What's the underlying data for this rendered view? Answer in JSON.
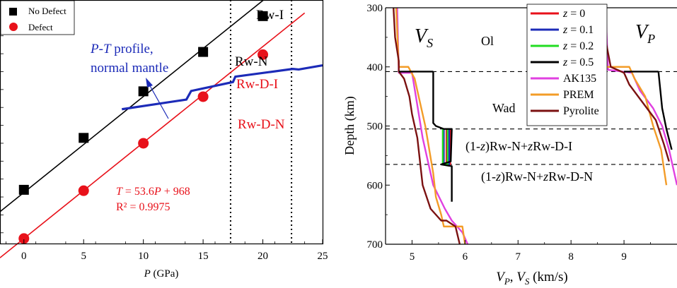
{
  "chart_data": [
    {
      "type": "scatter",
      "xlabel": "P (GPa)",
      "xlabel_parts": {
        "var": "P",
        "unit": " (GPa)"
      },
      "ylabel": "",
      "xlim": [
        -2,
        25
      ],
      "ylim": [
        940,
        2300
      ],
      "xticks": [
        "0",
        "5",
        "10",
        "15",
        "20",
        "25"
      ],
      "grid": false,
      "legend_position": "top-left",
      "series": [
        {
          "name": "No Defect",
          "marker": "square",
          "color": "#000000",
          "x": [
            0,
            5,
            10,
            15,
            20
          ],
          "y": [
            1240,
            1530,
            1790,
            2010,
            2210
          ],
          "fit": {
            "slope": 53.6,
            "intercept": 1225,
            "x_range": [
              -2,
              23.5
            ]
          }
        },
        {
          "name": "Defect",
          "marker": "circle",
          "color": "#e8111a",
          "x": [
            0,
            5,
            10,
            15,
            20
          ],
          "y": [
            968,
            1235,
            1500,
            1760,
            1995
          ],
          "fit": {
            "slope": 53.6,
            "intercept": 968,
            "x_range": [
              -2,
              23.5
            ]
          }
        },
        {
          "name": "P-T profile, normal mantle",
          "marker": "none",
          "color": "#1c2bb8",
          "x": [
            8.2,
            13.6,
            14,
            17.5,
            17.7,
            22.5,
            23,
            25
          ],
          "y": [
            1690,
            1744,
            1792,
            1842,
            1872,
            1915,
            1912,
            1935
          ]
        }
      ],
      "vlines": [
        17.3,
        22.4
      ],
      "annotations": {
        "rw_i": "Rw-I",
        "rw_n": "Rw-N",
        "rw_d_i": "Rw-D-I",
        "rw_d_n": "Rw-D-N",
        "profile_line1": "P-T profile,",
        "profile_line1_var": "P",
        "profile_line1_dash": "-",
        "profile_line1_var2": "T",
        "profile_line1_rest": " profile,",
        "profile_line2": "normal mantle",
        "equation": "T = 53.6P + 968",
        "equation_parts": {
          "var": "T",
          "eq": " = 53.6",
          "var2": "P",
          "rest": " + 968"
        },
        "r2": "R² = 0.9975"
      }
    },
    {
      "type": "line",
      "xlabel": "VP, VS (km/s)",
      "xlabel_parts": {
        "v1": "V",
        "s1": "P",
        "sep": ", ",
        "v2": "V",
        "s2": "S",
        "unit": " (km/s)"
      },
      "ylabel": "Depth (km)",
      "xlim": [
        4.5,
        10
      ],
      "ylim": [
        700,
        300
      ],
      "xticks": [
        "5",
        "6",
        "7",
        "8",
        "9"
      ],
      "yticks": [
        "300",
        "400",
        "500",
        "600",
        "700"
      ],
      "grid": false,
      "legend_position": "top-center",
      "series": [
        {
          "name": "z = 0",
          "name_var": "z",
          "name_rest": " = 0",
          "color": "#e8111a",
          "x": [
            5.72,
            5.72,
            5.65,
            5.65
          ],
          "y": [
            505,
            565,
            565,
            505
          ]
        },
        {
          "name": "z = 0.1",
          "name_var": "z",
          "name_rest": " = 0.1",
          "color": "#1c2bb8",
          "x": [
            5.7,
            5.7,
            5.6,
            5.6
          ],
          "y": [
            505,
            565,
            565,
            505
          ]
        },
        {
          "name": "z = 0.2",
          "name_var": "z",
          "name_rest": " = 0.2",
          "color": "#22dd22",
          "x": [
            5.67,
            5.67,
            5.58,
            5.58
          ],
          "y": [
            505,
            565,
            565,
            505
          ]
        },
        {
          "name": "z = 0.5",
          "name_var": "z",
          "name_rest": " = 0.5",
          "color": "#000000",
          "vs": {
            "x": [
              5.4,
              5.4,
              5.45,
              5.6,
              5.75,
              5.73,
              5.55,
              5.75,
              5.75
            ],
            "y": [
              408,
              495,
              500,
              505,
              505,
              560,
              565,
              568,
              628
            ]
          },
          "vp": {
            "x": [
              9.65,
              9.72,
              9.8,
              9.9
            ],
            "y": [
              408,
              470,
              505,
              540
            ]
          }
        },
        {
          "name": "AK135",
          "color": "#e040e0",
          "vs": {
            "x": [
              4.72,
              4.75,
              5.0,
              5.2,
              5.4,
              5.62,
              5.75,
              5.95,
              6.05
            ],
            "y": [
              300,
              410,
              410,
              520,
              600,
              640,
              660,
              680,
              700
            ]
          },
          "vp": {
            "x": [
              8.65,
              8.7,
              9.15,
              9.3,
              9.55,
              9.72,
              9.85,
              10.0
            ],
            "y": [
              300,
              405,
              410,
              440,
              470,
              500,
              540,
              600
            ]
          }
        },
        {
          "name": "PREM",
          "color": "#f39c28",
          "vs": {
            "x": [
              4.7,
              4.75,
              4.93,
              5.05,
              5.25,
              5.4,
              5.45,
              5.55,
              5.6,
              5.95,
              6.0
            ],
            "y": [
              300,
              400,
              400,
              420,
              500,
              580,
              620,
              650,
              670,
              670,
              700
            ]
          },
          "vp": {
            "x": [
              8.6,
              8.65,
              9.1,
              9.2,
              9.4,
              9.55,
              9.7,
              9.8
            ],
            "y": [
              300,
              400,
              400,
              420,
              450,
              500,
              540,
              600
            ]
          }
        },
        {
          "name": "Pyrolite",
          "color": "#7b1111",
          "vs": {
            "x": [
              4.65,
              4.68,
              4.75,
              4.75,
              4.85,
              4.95,
              5.0,
              5.1,
              5.15,
              5.2,
              5.35,
              5.55,
              5.65,
              5.82,
              5.9
            ],
            "y": [
              300,
              350,
              390,
              408,
              420,
              450,
              480,
              520,
              560,
              600,
              640,
              660,
              660,
              670,
              700
            ]
          },
          "vp": {
            "x": [
              8.6,
              8.62,
              8.75,
              9.0,
              9.1,
              9.35,
              9.6,
              9.75,
              9.85
            ],
            "y": [
              300,
              340,
              400,
              410,
              430,
              460,
              490,
              530,
              560
            ]
          }
        }
      ],
      "hlines": [
        408,
        505,
        565
      ],
      "annotations": {
        "vs_label": "VS",
        "vs_var": "V",
        "vs_sub": "S",
        "vp_label": "VP",
        "vp_var": "V",
        "vp_sub": "P",
        "ol": "Ol",
        "wad": "Wad",
        "layer1": "(1-z)Rw-N+zRw-D-I",
        "layer1_parts": {
          "a": "(1-",
          "z": "z",
          "b": ")Rw-N+",
          "z2": "z",
          "c": "Rw-D-I"
        },
        "layer2": "(1-z)Rw-N+zRw-D-N",
        "layer2_parts": {
          "a": "(1-",
          "z": "z",
          "b": ")Rw-N+",
          "z2": "z",
          "c": "Rw-D-N"
        }
      }
    }
  ],
  "legend_left": {
    "items": [
      "No Defect",
      "Defect"
    ]
  }
}
